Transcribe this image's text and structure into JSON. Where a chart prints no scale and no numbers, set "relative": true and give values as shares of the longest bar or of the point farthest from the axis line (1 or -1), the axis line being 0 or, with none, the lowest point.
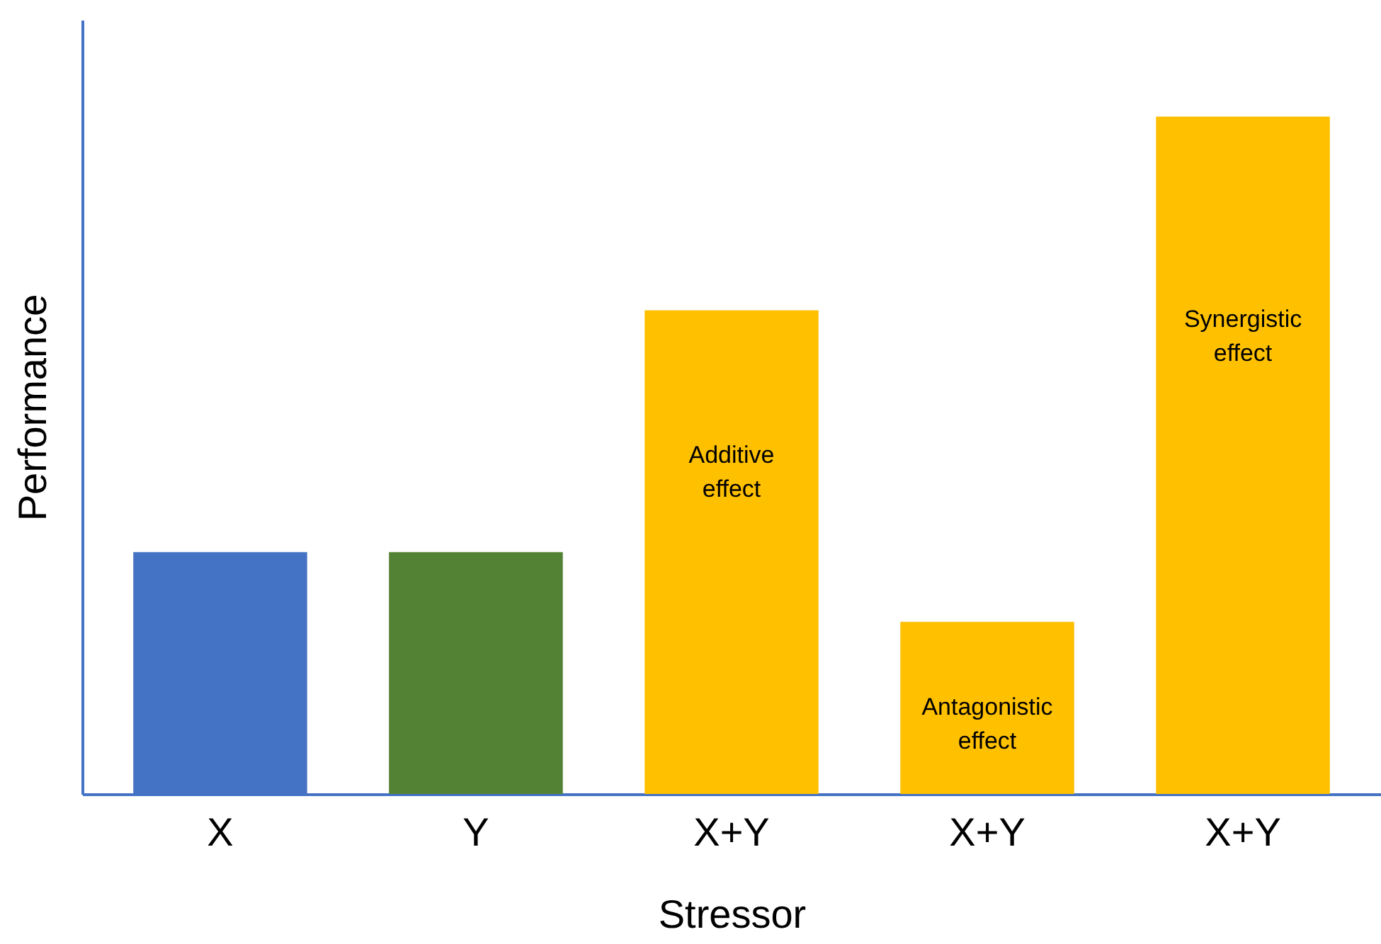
{
  "chart_data": {
    "type": "bar",
    "xlabel": "Stressor",
    "ylabel": "Performance",
    "relative": true,
    "categories": [
      "X",
      "Y",
      "X+Y",
      "X+Y",
      "X+Y"
    ],
    "values": [
      0.357,
      0.357,
      0.714,
      0.254,
      1
    ],
    "colors": [
      "#4472c4",
      "#548235",
      "#ffc000",
      "#ffc000",
      "#ffc000"
    ],
    "annotations": [
      "Additive effect",
      "Antagonistic effect",
      "Synergistic effect"
    ],
    "grid": false
  }
}
